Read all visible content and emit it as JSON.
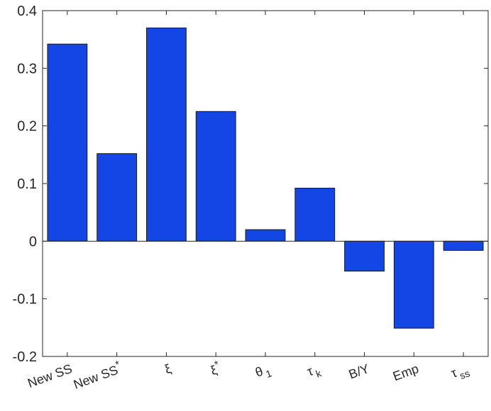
{
  "chart_data": {
    "type": "bar",
    "categories": [
      "New SS",
      "New SS*",
      "ξ",
      "ξ*",
      "θ1",
      "τk",
      "B/Y",
      "Emp",
      "τss"
    ],
    "category_labels": [
      {
        "base": "New SS",
        "sup": "",
        "sub": ""
      },
      {
        "base": "New SS",
        "sup": "*",
        "sub": ""
      },
      {
        "base": "ξ",
        "sup": "",
        "sub": ""
      },
      {
        "base": "ξ",
        "sup": "*",
        "sub": ""
      },
      {
        "base": "θ",
        "sup": "",
        "sub": "1"
      },
      {
        "base": "τ",
        "sup": "",
        "sub": "k"
      },
      {
        "base": "B/Y",
        "sup": "",
        "sub": ""
      },
      {
        "base": "Emp",
        "sup": "",
        "sub": ""
      },
      {
        "base": "τ",
        "sup": "",
        "sub": "ss"
      }
    ],
    "values": [
      0.342,
      0.152,
      0.37,
      0.225,
      0.02,
      0.092,
      -0.052,
      -0.151,
      -0.016
    ],
    "ylim": [
      -0.2,
      0.4
    ],
    "yticks": [
      -0.2,
      -0.1,
      0,
      0.1,
      0.2,
      0.3,
      0.4
    ],
    "ytick_labels": [
      "-0.2",
      "-0.1",
      "0",
      "0.1",
      "0.2",
      "0.3",
      "0.4"
    ],
    "bar_color": "#1446e6",
    "edge_color": "#1a1a1a",
    "grid": false
  }
}
